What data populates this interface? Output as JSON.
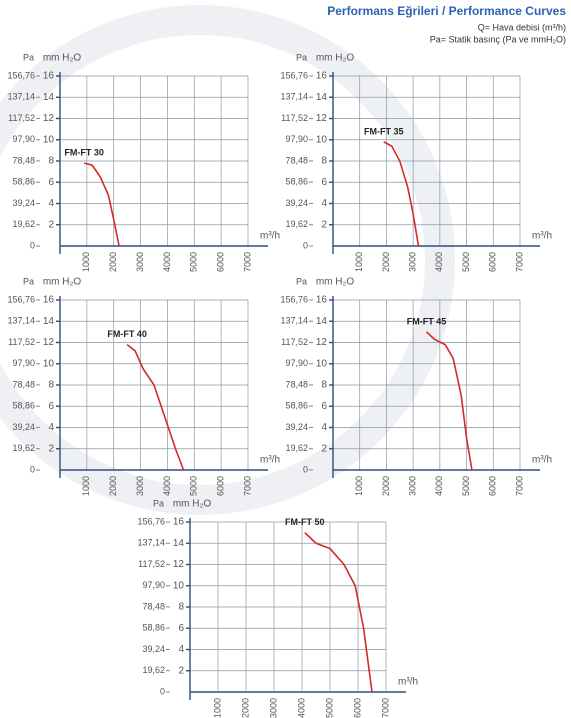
{
  "header": {
    "title": "Performans Eğrileri / Performance Curves",
    "notes": [
      "Q= Hava debisi (m³/h)",
      "Pa= Statik basınç  (Pa ve mmH₂O)"
    ]
  },
  "chart_data": [
    {
      "type": "line",
      "title": "FM-FT 30",
      "color": "#d42a2a",
      "xlabel": "m³/h",
      "ylabel": "mm H₂O",
      "y2label": "Pa",
      "x": [
        900,
        1200,
        1500,
        1800,
        2000,
        2200
      ],
      "values": [
        7.8,
        7.6,
        6.5,
        4.8,
        2.5,
        0
      ],
      "xlim": [
        0,
        7000
      ],
      "xticks": [
        1000,
        2000,
        3000,
        4000,
        5000,
        6000,
        7000
      ],
      "ylim": [
        0,
        16
      ],
      "yticks": [
        2,
        4,
        6,
        8,
        10,
        12,
        14,
        16
      ],
      "y2lim": [
        0,
        156.76
      ],
      "y2ticks": [
        0,
        {
          "value": 19.62,
          "label": "19,62"
        },
        {
          "value": 39.24,
          "label": "39,24"
        },
        {
          "value": 58.86,
          "label": "58,86"
        },
        {
          "value": 78.48,
          "label": "78,48"
        },
        {
          "value": 97.9,
          "label": "97,90"
        },
        {
          "value": 117.52,
          "label": "117,52"
        },
        {
          "value": 137.14,
          "label": "137,14"
        },
        {
          "value": 156.76,
          "label": "156,76"
        }
      ],
      "grid": true
    },
    {
      "type": "line",
      "title": "FM-FT 35",
      "color": "#d42a2a",
      "xlabel": "m³/h",
      "ylabel": "mm H₂O",
      "y2label": "Pa",
      "x": [
        1900,
        2200,
        2500,
        2800,
        3000,
        3200
      ],
      "values": [
        9.8,
        9.4,
        8,
        5.5,
        3,
        0
      ],
      "xlim": [
        0,
        7000
      ],
      "xticks": [
        1000,
        2000,
        3000,
        4000,
        5000,
        6000,
        7000
      ],
      "ylim": [
        0,
        16
      ],
      "yticks": [
        2,
        4,
        6,
        8,
        10,
        12,
        14,
        16
      ],
      "y2lim": [
        0,
        156.76
      ],
      "y2ticks": [
        0,
        {
          "value": 19.62,
          "label": "19,62"
        },
        {
          "value": 39.24,
          "label": "39,24"
        },
        {
          "value": 58.86,
          "label": "58,86"
        },
        {
          "value": 78.48,
          "label": "78,48"
        },
        {
          "value": 97.9,
          "label": "97,90"
        },
        {
          "value": 117.52,
          "label": "117,52"
        },
        {
          "value": 137.14,
          "label": "137,14"
        },
        {
          "value": 156.76,
          "label": "156,76"
        }
      ],
      "grid": true
    },
    {
      "type": "line",
      "title": "FM-FT 40",
      "color": "#d42a2a",
      "xlabel": "m³/h",
      "ylabel": "mm H₂O",
      "y2label": "Pa",
      "x": [
        2500,
        2800,
        3100,
        3500,
        3900,
        4300,
        4600
      ],
      "values": [
        11.8,
        11.2,
        9.5,
        8,
        5,
        2,
        0
      ],
      "xlim": [
        0,
        7000
      ],
      "xticks": [
        1000,
        2000,
        3000,
        4000,
        5000,
        6000,
        7000
      ],
      "ylim": [
        0,
        16
      ],
      "yticks": [
        2,
        4,
        6,
        8,
        10,
        12,
        14,
        16
      ],
      "y2lim": [
        0,
        156.76
      ],
      "y2ticks": [
        0,
        {
          "value": 19.62,
          "label": "19,62"
        },
        {
          "value": 39.24,
          "label": "39,24"
        },
        {
          "value": 58.86,
          "label": "58,86"
        },
        {
          "value": 78.48,
          "label": "78,48"
        },
        {
          "value": 97.9,
          "label": "97,90"
        },
        {
          "value": 117.52,
          "label": "117,52"
        },
        {
          "value": 137.14,
          "label": "137,14"
        },
        {
          "value": 156.76,
          "label": "156,76"
        }
      ],
      "grid": true
    },
    {
      "type": "line",
      "title": "FM-FT 45",
      "color": "#d42a2a",
      "xlabel": "m³/h",
      "ylabel": "mm H₂O",
      "y2label": "Pa",
      "x": [
        3500,
        3800,
        4200,
        4500,
        4800,
        5000,
        5200
      ],
      "values": [
        13,
        12.3,
        11.8,
        10.5,
        7,
        3,
        0
      ],
      "xlim": [
        0,
        7000
      ],
      "xticks": [
        1000,
        2000,
        3000,
        4000,
        5000,
        6000,
        7000
      ],
      "ylim": [
        0,
        16
      ],
      "yticks": [
        2,
        4,
        6,
        8,
        10,
        12,
        14,
        16
      ],
      "y2lim": [
        0,
        156.76
      ],
      "y2ticks": [
        0,
        {
          "value": 19.62,
          "label": "19,62"
        },
        {
          "value": 39.24,
          "label": "39,24"
        },
        {
          "value": 58.86,
          "label": "58,86"
        },
        {
          "value": 78.48,
          "label": "78,48"
        },
        {
          "value": 97.9,
          "label": "97,90"
        },
        {
          "value": 117.52,
          "label": "117,52"
        },
        {
          "value": 137.14,
          "label": "137,14"
        },
        {
          "value": 156.76,
          "label": "156,76"
        }
      ],
      "grid": true
    },
    {
      "type": "line",
      "title": "FM-FT 50",
      "color": "#d42a2a",
      "xlabel": "m³/h",
      "ylabel": "mm H₂O",
      "y2label": "Pa",
      "x": [
        4100,
        4500,
        5000,
        5500,
        5900,
        6200,
        6500
      ],
      "values": [
        15,
        14,
        13.5,
        12,
        10,
        6,
        0
      ],
      "xlim": [
        0,
        7000
      ],
      "xticks": [
        1000,
        2000,
        3000,
        4000,
        5000,
        6000,
        7000
      ],
      "ylim": [
        0,
        16
      ],
      "yticks": [
        2,
        4,
        6,
        8,
        10,
        12,
        14,
        16
      ],
      "y2lim": [
        0,
        156.76
      ],
      "y2ticks": [
        0,
        {
          "value": 19.62,
          "label": "19,62"
        },
        {
          "value": 39.24,
          "label": "39,24"
        },
        {
          "value": 58.86,
          "label": "58,86"
        },
        {
          "value": 78.48,
          "label": "78,48"
        },
        {
          "value": 97.9,
          "label": "97,90"
        },
        {
          "value": 117.52,
          "label": "117,52"
        },
        {
          "value": 137.14,
          "label": "137,14"
        },
        {
          "value": 156.76,
          "label": "156,76"
        }
      ],
      "grid": true
    }
  ]
}
